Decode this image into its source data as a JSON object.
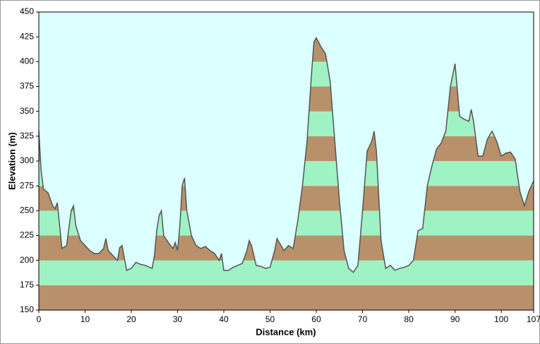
{
  "chart_data": {
    "type": "area",
    "x_label": "Distance  (km)",
    "y_label": "Elevation  (m)",
    "x": [
      0,
      0.5,
      1,
      2,
      3,
      3.5,
      4,
      5,
      6,
      7,
      7.5,
      8,
      9,
      10,
      11,
      12,
      13,
      14,
      14.5,
      15,
      16,
      17,
      17.5,
      18,
      19,
      20,
      21,
      22,
      23,
      24,
      24.5,
      25,
      25.5,
      26,
      26.5,
      27,
      28,
      29,
      29.5,
      30,
      30.5,
      31,
      31.5,
      32,
      33,
      34,
      35,
      36,
      37,
      38,
      39,
      39.5,
      40,
      41,
      42,
      43,
      44,
      45,
      45.5,
      46,
      47,
      48,
      49,
      50,
      51,
      51.5,
      52,
      53,
      54,
      55,
      56,
      57,
      58,
      59,
      59.5,
      60,
      61,
      62,
      63,
      64,
      65,
      66,
      67,
      68,
      69,
      70,
      71,
      72,
      72.5,
      73,
      74,
      75,
      76,
      77,
      78,
      79,
      80,
      81,
      82,
      83,
      84,
      85,
      86,
      87,
      88,
      89,
      90,
      91,
      92,
      93,
      93.5,
      94,
      95,
      96,
      97,
      98,
      99,
      100,
      101,
      102,
      103,
      104,
      105,
      106,
      107
    ],
    "values": [
      330,
      290,
      272,
      268,
      255,
      252,
      258,
      212,
      215,
      250,
      255,
      235,
      220,
      215,
      210,
      207,
      207,
      212,
      222,
      210,
      205,
      200,
      213,
      215,
      190,
      192,
      198,
      196,
      195,
      193,
      192,
      205,
      230,
      245,
      250,
      225,
      218,
      212,
      218,
      210,
      235,
      275,
      283,
      250,
      225,
      215,
      212,
      214,
      210,
      207,
      200,
      207,
      190,
      190,
      193,
      195,
      197,
      210,
      220,
      215,
      195,
      194,
      192,
      193,
      210,
      222,
      218,
      210,
      215,
      212,
      240,
      275,
      320,
      390,
      420,
      424,
      415,
      408,
      380,
      320,
      260,
      210,
      192,
      188,
      195,
      250,
      310,
      320,
      330,
      310,
      220,
      192,
      195,
      190,
      192,
      193,
      195,
      200,
      230,
      232,
      275,
      295,
      312,
      318,
      330,
      375,
      398,
      345,
      342,
      340,
      352,
      340,
      305,
      305,
      322,
      330,
      320,
      305,
      308,
      309,
      302,
      270,
      255,
      270,
      280
    ],
    "colors": [
      "#b8906a",
      "#9ff2c4"
    ],
    "background": "#dcffff",
    "line_color": "#555555",
    "xlim": [
      0,
      107
    ],
    "xticks": [
      0,
      10,
      20,
      30,
      40,
      50,
      60,
      70,
      80,
      90,
      100,
      107
    ],
    "ylim": [
      150,
      450
    ],
    "yticks": [
      150,
      175,
      200,
      225,
      250,
      275,
      300,
      325,
      350,
      375,
      400,
      425,
      450
    ]
  }
}
